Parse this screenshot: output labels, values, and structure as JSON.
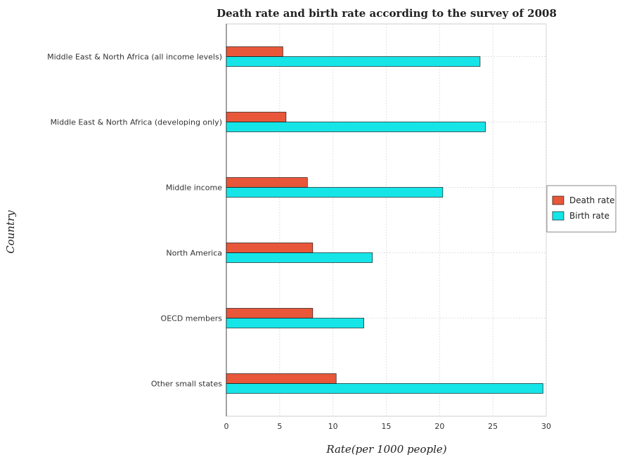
{
  "chart_data": {
    "type": "bar",
    "orientation": "horizontal",
    "title": "Death rate and birth rate according to the survey of 2008",
    "xlabel": "Rate(per 1000 people)",
    "ylabel": "Country",
    "categories": [
      "Middle East & North Africa (all income levels)",
      "Middle East & North Africa (developing only)",
      "Middle income",
      "North America",
      "OECD members",
      "Other small states"
    ],
    "series": [
      {
        "name": "Death rate",
        "color": "#e8573a",
        "values": [
          5.3,
          5.6,
          7.6,
          8.1,
          8.1,
          10.3
        ]
      },
      {
        "name": "Birth rate",
        "color": "#16e5e8",
        "values": [
          23.8,
          24.3,
          20.3,
          13.7,
          12.9,
          29.7
        ]
      }
    ],
    "xlim": [
      0,
      30
    ],
    "xticks": [
      0,
      5,
      10,
      15,
      20,
      25,
      30
    ],
    "grid": true,
    "legend_position": "right"
  }
}
